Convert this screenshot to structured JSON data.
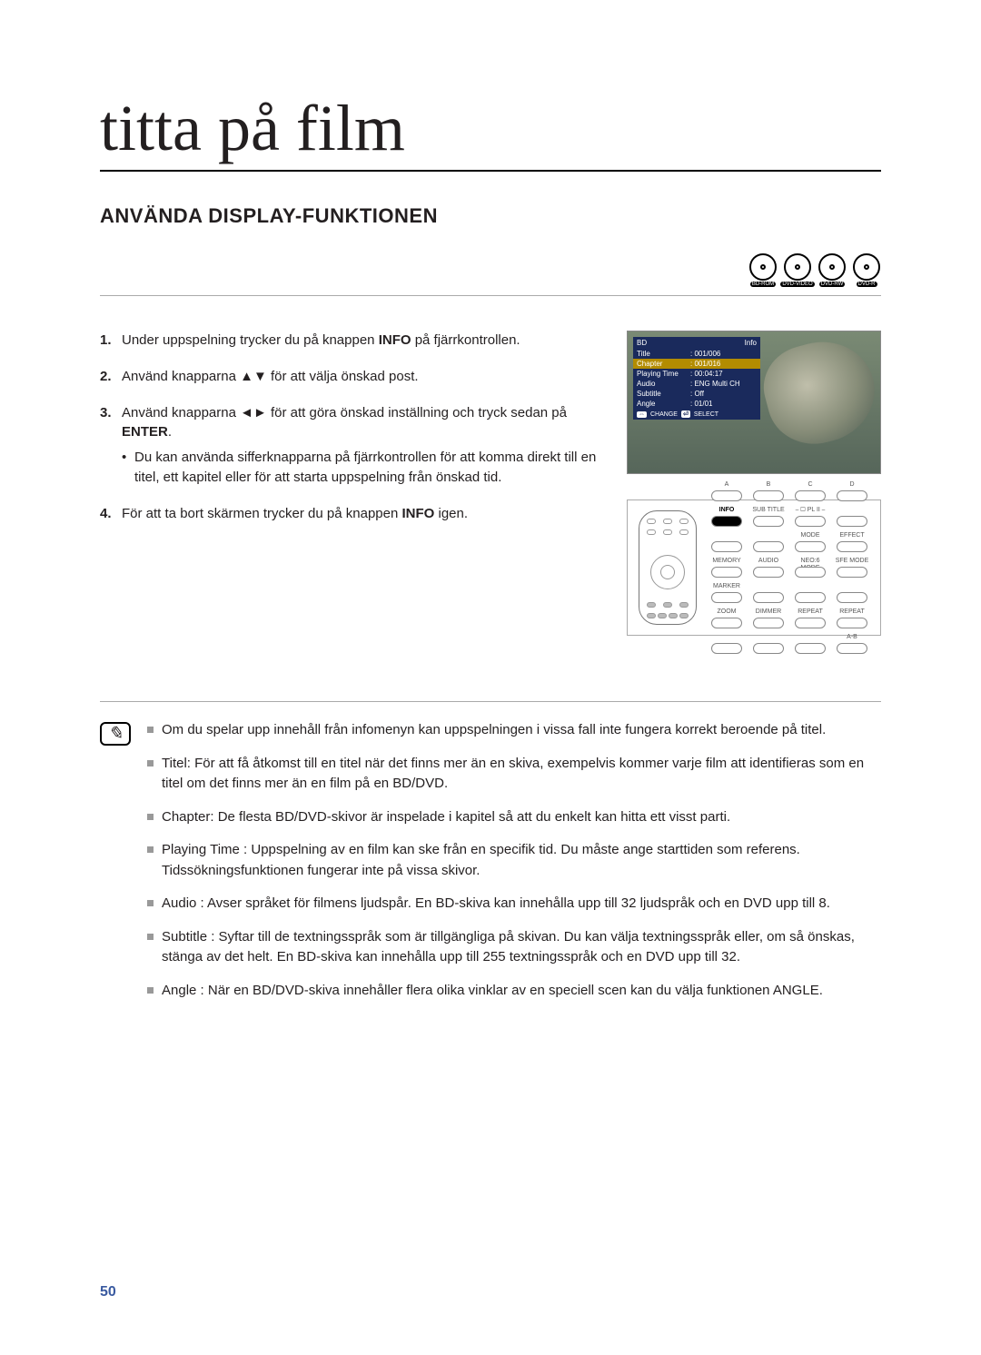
{
  "page": {
    "chapter_title": "titta på film",
    "section_title": "ANVÄNDA DISPLAY-FUNKTIONEN",
    "page_number": "50"
  },
  "disc_icons": [
    {
      "label": "BD-ROM"
    },
    {
      "label": "DVD-VIDEO"
    },
    {
      "label": "DVD-RW"
    },
    {
      "label": "DVD-R"
    }
  ],
  "steps": {
    "s1_pre": "Under uppspelning trycker du på knappen ",
    "s1_bold": "INFO",
    "s1_post": " på fjärrkontrollen.",
    "s2": "Använd knapparna ▲▼ för att välja önskad post.",
    "s3_pre": "Använd knapparna ◄► för att göra önskad inställning och tryck sedan på ",
    "s3_bold": "ENTER",
    "s3_post": ".",
    "s3_sub": "Du kan använda sifferknapparna på fjärrkontrollen för att komma direkt till en titel, ett kapitel eller för att starta uppspelning från önskad tid.",
    "s4_pre": "För att ta bort skärmen trycker du på knappen ",
    "s4_bold": "INFO",
    "s4_post": " igen."
  },
  "osd": {
    "hdr_left": "BD",
    "hdr_right": "Info",
    "rows": [
      {
        "k": "Title",
        "v": ": 001/006",
        "sel": false
      },
      {
        "k": "Chapter",
        "v": ": 001/016",
        "sel": true
      },
      {
        "k": "Playing Time",
        "v": ": 00:04:17",
        "sel": false
      },
      {
        "k": "Audio",
        "v": ": ENG Multi CH",
        "sel": false
      },
      {
        "k": "Subtitle",
        "v": ": Off",
        "sel": false
      },
      {
        "k": "Angle",
        "v": ": 01/01",
        "sel": false
      }
    ],
    "ftr_change": "CHANGE",
    "ftr_select": "SELECT"
  },
  "remote_grid": {
    "rows": [
      [
        {
          "lbl": "A"
        },
        {
          "lbl": "B"
        },
        {
          "lbl": "C"
        },
        {
          "lbl": "D"
        }
      ],
      [
        {
          "lbl": "INFO",
          "active": true
        },
        {
          "lbl": "SUB TITLE"
        },
        {
          "lbl": "⎯ ▢ PL II ⎯"
        },
        {
          "lbl": ""
        }
      ],
      [
        {
          "lbl": ""
        },
        {
          "lbl": ""
        },
        {
          "lbl": "MODE"
        },
        {
          "lbl": "EFFECT"
        }
      ],
      [
        {
          "lbl": "MEMORY"
        },
        {
          "lbl": "AUDIO"
        },
        {
          "lbl": "NEO:6 MODE"
        },
        {
          "lbl": "SFE MODE"
        }
      ],
      [
        {
          "lbl": "MARKER"
        },
        {
          "lbl": ""
        },
        {
          "lbl": ""
        },
        {
          "lbl": ""
        }
      ],
      [
        {
          "lbl": "ZOOM"
        },
        {
          "lbl": "DIMMER"
        },
        {
          "lbl": "REPEAT"
        },
        {
          "lbl": "REPEAT"
        }
      ],
      [
        {
          "lbl": ""
        },
        {
          "lbl": ""
        },
        {
          "lbl": ""
        },
        {
          "lbl": "A-B"
        }
      ]
    ]
  },
  "notes": [
    "Om du spelar upp innehåll från infomenyn kan uppspelningen i vissa fall inte fungera korrekt beroende på titel.",
    "Titel: För att få åtkomst till en titel när det finns mer än en skiva, exempelvis kommer varje film att identifieras som en titel om det finns mer än en film på en BD/DVD.",
    "Chapter: De flesta BD/DVD-skivor är inspelade i kapitel så att du enkelt kan hitta ett visst parti.",
    "Playing Time : Uppspelning av en film kan ske från en specifik tid. Du måste ange starttiden som referens. Tidssökningsfunktionen fungerar inte på vissa skivor.",
    "Audio : Avser språket för filmens ljudspår. En BD-skiva kan innehålla upp till 32 ljudspråk och en DVD upp till 8.",
    "Subtitle : Syftar till de textningsspråk som är tillgängliga på skivan. Du kan välja textningsspråk eller, om så önskas, stänga av det helt. En BD-skiva kan innehålla upp till 255 textningsspråk och en DVD upp till 32.",
    "Angle : När en BD/DVD-skiva innehåller flera olika vinklar av en speciell scen kan du välja funktionen ANGLE."
  ]
}
